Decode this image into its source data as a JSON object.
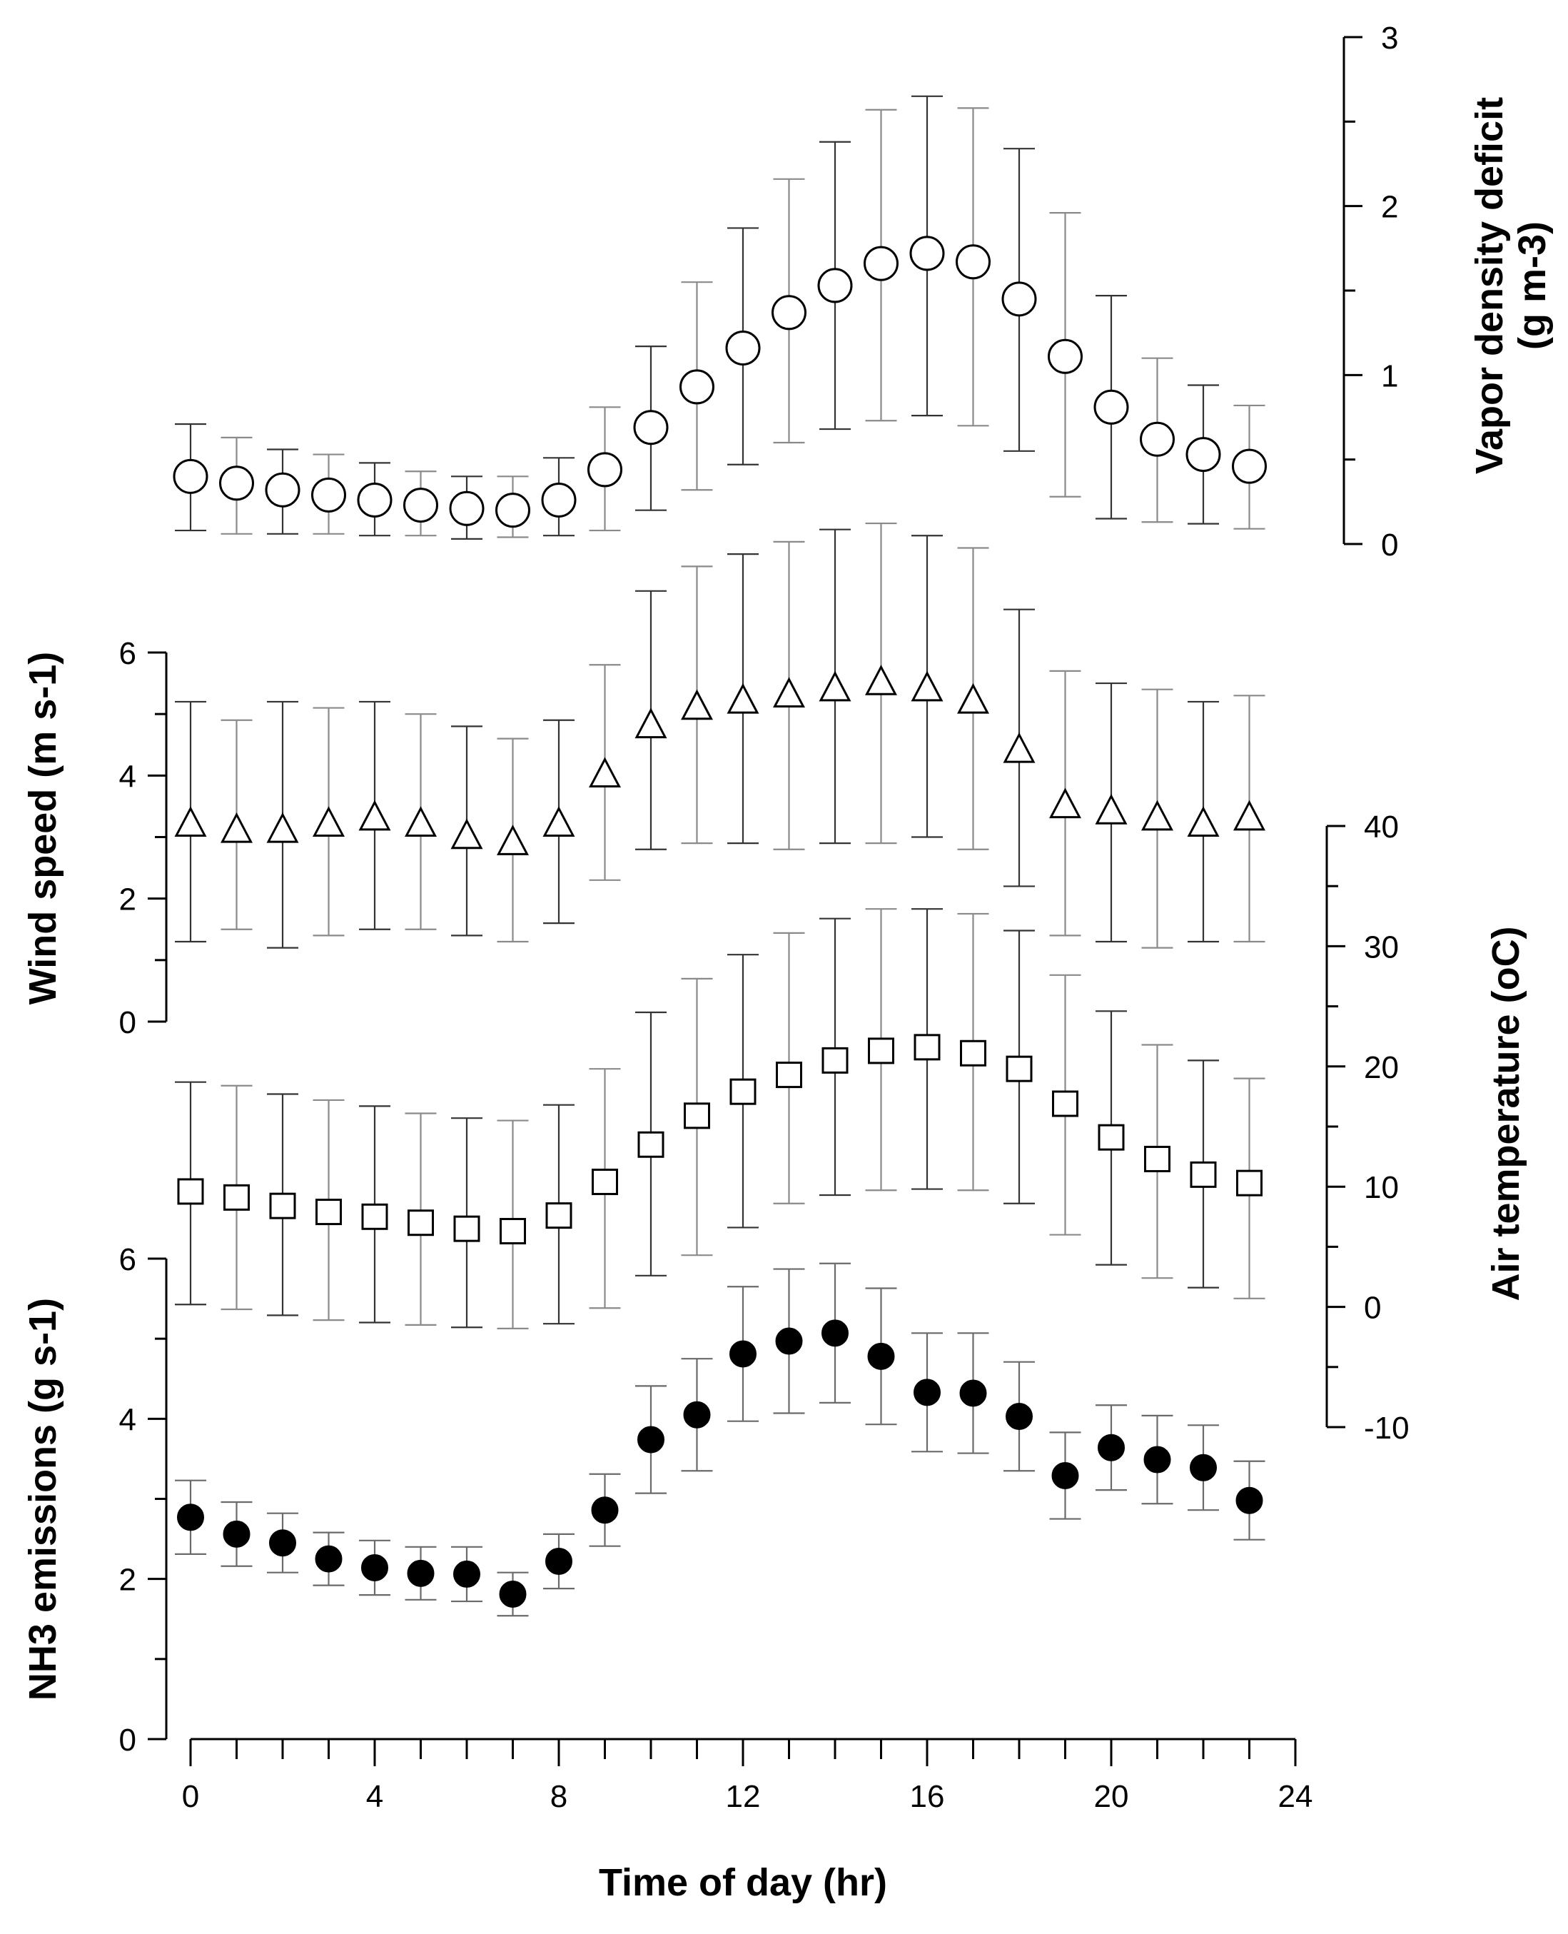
{
  "chart_data": {
    "type": "scatter",
    "xlabel": "Time of day (hr)",
    "xlim": [
      -0.5,
      23.8
    ],
    "xticks": [
      0,
      4,
      8,
      12,
      16,
      20,
      24
    ],
    "x": [
      0,
      1,
      2,
      3,
      4,
      5,
      6,
      7,
      8,
      9,
      10,
      11,
      12,
      13,
      14,
      15,
      16,
      17,
      18,
      19,
      20,
      21,
      22,
      23
    ],
    "series": [
      {
        "name": "Vapor density deficit",
        "ylabel": "Vapor density deficit",
        "ylabel2": "(g m-3)",
        "marker": "open-circle",
        "axis_side": "right",
        "ylim": [
          0,
          3
        ],
        "yticks": [
          0,
          1,
          2,
          3
        ],
        "values": [
          0.4,
          0.36,
          0.32,
          0.29,
          0.26,
          0.23,
          0.21,
          0.2,
          0.26,
          0.44,
          0.69,
          0.93,
          1.16,
          1.37,
          1.53,
          1.66,
          1.72,
          1.67,
          1.45,
          1.11,
          0.81,
          0.62,
          0.53,
          0.46
        ],
        "err_low": [
          0.08,
          0.06,
          0.06,
          0.06,
          0.05,
          0.05,
          0.03,
          0.04,
          0.05,
          0.08,
          0.2,
          0.32,
          0.47,
          0.6,
          0.68,
          0.73,
          0.76,
          0.7,
          0.55,
          0.28,
          0.15,
          0.13,
          0.12,
          0.09
        ],
        "err_high": [
          0.71,
          0.63,
          0.56,
          0.53,
          0.48,
          0.43,
          0.4,
          0.4,
          0.51,
          0.81,
          1.17,
          1.55,
          1.87,
          2.16,
          2.38,
          2.57,
          2.65,
          2.58,
          2.34,
          1.96,
          1.47,
          1.1,
          0.94,
          0.82
        ]
      },
      {
        "name": "Wind speed",
        "ylabel": "Wind speed (m s-1)",
        "marker": "open-triangle",
        "axis_side": "left",
        "ylim": [
          0,
          6
        ],
        "yticks": [
          0,
          2,
          4,
          6
        ],
        "values": [
          3.2,
          3.1,
          3.1,
          3.2,
          3.3,
          3.2,
          3.0,
          2.9,
          3.2,
          4.0,
          4.8,
          5.1,
          5.2,
          5.3,
          5.4,
          5.5,
          5.4,
          5.2,
          4.4,
          3.5,
          3.4,
          3.3,
          3.2,
          3.3
        ],
        "err_low": [
          1.3,
          1.5,
          1.2,
          1.4,
          1.5,
          1.5,
          1.4,
          1.3,
          1.6,
          2.3,
          2.8,
          2.9,
          2.9,
          2.8,
          2.9,
          2.9,
          3.0,
          2.8,
          2.2,
          1.4,
          1.3,
          1.2,
          1.3,
          1.3
        ],
        "err_high": [
          5.2,
          4.9,
          5.2,
          5.1,
          5.2,
          5.0,
          4.8,
          4.6,
          4.9,
          5.8,
          7.0,
          7.4,
          7.6,
          7.8,
          8.0,
          8.1,
          7.9,
          7.7,
          6.7,
          5.7,
          5.5,
          5.4,
          5.2,
          5.3
        ]
      },
      {
        "name": "Air temperature",
        "ylabel": "Air temperature",
        "ylabel2": "(oC)",
        "marker": "open-square",
        "axis_side": "right",
        "ylim": [
          -10,
          40
        ],
        "yticks": [
          -10,
          0,
          10,
          20,
          30,
          40
        ],
        "values": [
          9.6,
          9.1,
          8.4,
          7.9,
          7.5,
          7.0,
          6.5,
          6.3,
          7.6,
          10.4,
          13.5,
          15.9,
          17.9,
          19.3,
          20.5,
          21.3,
          21.6,
          21.1,
          19.8,
          16.9,
          14.1,
          12.3,
          11.0,
          10.3
        ],
        "err_low": [
          0.2,
          -0.2,
          -0.7,
          -1.1,
          -1.3,
          -1.5,
          -1.7,
          -1.8,
          -1.4,
          -0.1,
          2.6,
          4.3,
          6.6,
          8.6,
          9.3,
          9.7,
          9.8,
          9.7,
          8.6,
          6.0,
          3.5,
          2.4,
          1.6,
          0.7
        ],
        "err_high": [
          18.7,
          18.4,
          17.7,
          17.2,
          16.7,
          16.1,
          15.7,
          15.5,
          16.8,
          19.8,
          24.5,
          27.3,
          29.3,
          31.1,
          32.3,
          33.1,
          33.1,
          32.7,
          31.3,
          27.6,
          24.6,
          21.8,
          20.5,
          19.0
        ]
      },
      {
        "name": "NH3 emissions",
        "ylabel": "NH3 emissions (g s-1)",
        "marker": "filled-circle",
        "axis_side": "left",
        "ylim": [
          0,
          6
        ],
        "yticks": [
          0,
          2,
          4,
          6
        ],
        "values": [
          2.77,
          2.56,
          2.45,
          2.25,
          2.14,
          2.07,
          2.06,
          1.81,
          2.22,
          2.86,
          3.74,
          4.05,
          4.81,
          4.97,
          5.07,
          4.78,
          4.33,
          4.32,
          4.03,
          3.29,
          3.64,
          3.49,
          3.39,
          2.98
        ],
        "err_low": [
          2.31,
          2.16,
          2.08,
          1.92,
          1.8,
          1.74,
          1.72,
          1.54,
          1.88,
          2.41,
          3.07,
          3.35,
          3.97,
          4.07,
          4.2,
          3.93,
          3.59,
          3.57,
          3.35,
          2.75,
          3.11,
          2.94,
          2.86,
          2.49
        ],
        "err_high": [
          3.23,
          2.96,
          2.82,
          2.58,
          2.48,
          2.4,
          2.4,
          2.08,
          2.56,
          3.31,
          4.41,
          4.75,
          5.65,
          5.87,
          5.94,
          5.63,
          5.07,
          5.07,
          4.71,
          3.83,
          4.17,
          4.04,
          3.92,
          3.47
        ]
      }
    ]
  }
}
